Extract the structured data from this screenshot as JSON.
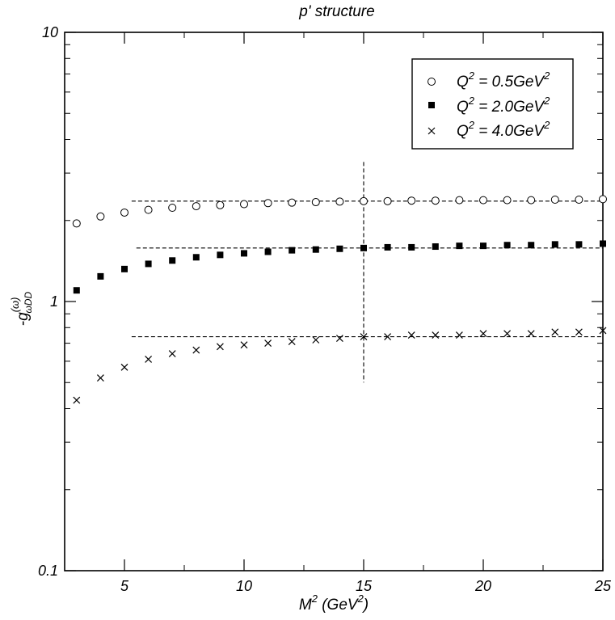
{
  "chart_data": {
    "type": "scatter",
    "title": "p' structure",
    "xlabel": {
      "base": "M",
      "sup": "2",
      "unit_open": " (GeV",
      "unit_sup": "2",
      "unit_close": ")"
    },
    "ylabel": {
      "prefix": "-g",
      "sup": "(ω)",
      "sub": "ωDD"
    },
    "xlim": [
      2.5,
      25
    ],
    "ylim": [
      0.1,
      10
    ],
    "yscale": "log",
    "x_ticks": [
      5,
      10,
      15,
      20,
      25
    ],
    "x_tick_labels": [
      "5",
      "10",
      "15",
      "20",
      "25"
    ],
    "y_ticks": [
      0.1,
      1,
      10
    ],
    "y_tick_labels": [
      "0.1",
      "1",
      "10"
    ],
    "grid": false,
    "legend_position": "top-right",
    "series": [
      {
        "label": {
          "q": "Q",
          "sup": "2",
          "eq": " = 0.5GeV",
          "sup2": "2"
        },
        "marker": "open-circle",
        "x": [
          3,
          4,
          5,
          6,
          7,
          8,
          9,
          10,
          11,
          12,
          13,
          14,
          15,
          16,
          17,
          18,
          19,
          20,
          21,
          22,
          23,
          24,
          25
        ],
        "y": [
          1.95,
          2.07,
          2.14,
          2.19,
          2.23,
          2.26,
          2.28,
          2.3,
          2.32,
          2.33,
          2.34,
          2.35,
          2.36,
          2.36,
          2.37,
          2.37,
          2.38,
          2.38,
          2.38,
          2.38,
          2.39,
          2.39,
          2.4
        ]
      },
      {
        "label": {
          "q": "Q",
          "sup": "2",
          "eq": " = 2.0GeV",
          "sup2": "2"
        },
        "marker": "filled-square",
        "x": [
          3,
          4,
          5,
          6,
          7,
          8,
          9,
          10,
          11,
          12,
          13,
          14,
          15,
          16,
          17,
          18,
          19,
          20,
          21,
          22,
          23,
          24,
          25
        ],
        "y": [
          1.1,
          1.24,
          1.32,
          1.38,
          1.42,
          1.46,
          1.49,
          1.51,
          1.53,
          1.55,
          1.56,
          1.57,
          1.58,
          1.59,
          1.59,
          1.6,
          1.61,
          1.61,
          1.62,
          1.62,
          1.63,
          1.63,
          1.64
        ]
      },
      {
        "label": {
          "q": "Q",
          "sup": "2",
          "eq": " = 4.0GeV",
          "sup2": "2"
        },
        "marker": "cross",
        "x": [
          3,
          4,
          5,
          6,
          7,
          8,
          9,
          10,
          11,
          12,
          13,
          14,
          15,
          16,
          17,
          18,
          19,
          20,
          21,
          22,
          23,
          24,
          25
        ],
        "y": [
          0.43,
          0.52,
          0.57,
          0.61,
          0.64,
          0.66,
          0.68,
          0.69,
          0.7,
          0.71,
          0.72,
          0.73,
          0.74,
          0.74,
          0.75,
          0.75,
          0.75,
          0.76,
          0.76,
          0.76,
          0.77,
          0.77,
          0.78
        ]
      }
    ],
    "reference_lines": [
      {
        "orientation": "horizontal",
        "y": 2.36,
        "x_range": [
          5.3,
          25
        ]
      },
      {
        "orientation": "horizontal",
        "y": 1.58,
        "x_range": [
          5.5,
          25
        ]
      },
      {
        "orientation": "horizontal",
        "y": 0.74,
        "x_range": [
          5.3,
          25
        ]
      },
      {
        "orientation": "vertical",
        "x": 15,
        "y_range": [
          0.5,
          3.3
        ]
      }
    ]
  }
}
